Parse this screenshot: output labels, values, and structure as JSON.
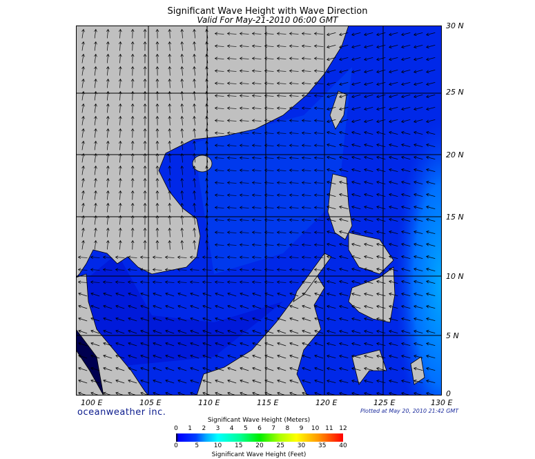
{
  "header": {
    "title": "Significant Wave Height with Wave Direction",
    "subtitle": "Valid For May-21-2010 06:00 GMT"
  },
  "map": {
    "region": "South China Sea",
    "lon_labels": [
      "100 E",
      "105 E",
      "110 E",
      "115 E",
      "120 E",
      "125 E",
      "130 E"
    ],
    "lat_labels": [
      "30 N",
      "25 N",
      "20 N",
      "15 N",
      "10 N",
      "5 N",
      "0"
    ],
    "colors": {
      "land": "#c0c0c0",
      "ocean_low": "#0000e0",
      "ocean_mid": "#0050f0",
      "ocean_high": "#00a0ff",
      "grid": "#000000"
    }
  },
  "footer": {
    "logo": "oceanweather inc.",
    "plotted": "Plotted at May 20, 2010 21:42 GMT"
  },
  "colorbar": {
    "title_meters": "Significant Wave Height (Meters)",
    "title_feet": "Significant Wave Height (Feet)",
    "meters_ticks": [
      "0",
      "1",
      "2",
      "3",
      "4",
      "5",
      "6",
      "7",
      "8",
      "9",
      "10",
      "11",
      "12"
    ],
    "feet_ticks": [
      "0",
      "5",
      "10",
      "15",
      "20",
      "25",
      "30",
      "35",
      "40"
    ],
    "range_meters": [
      0,
      12
    ],
    "range_feet": [
      0,
      40
    ]
  }
}
